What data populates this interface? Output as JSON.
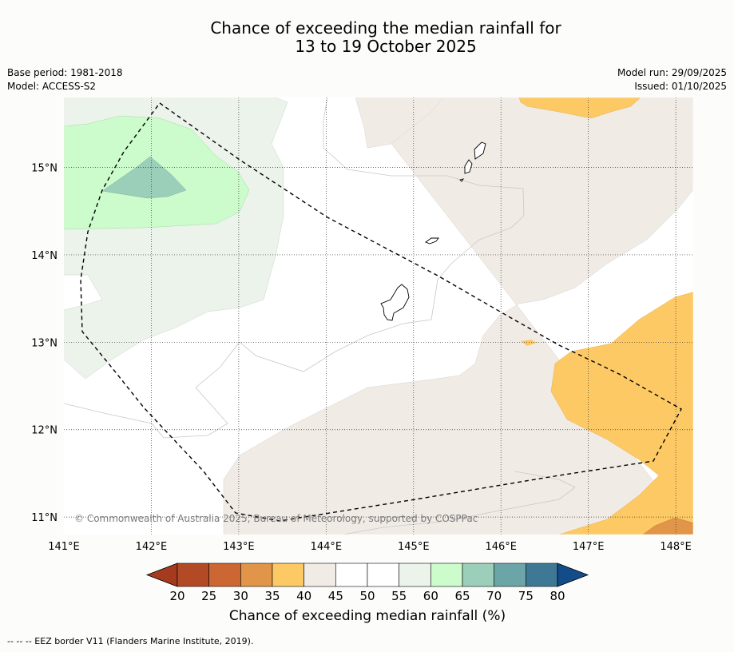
{
  "title": {
    "line1": "Chance of exceeding the median rainfall for",
    "line2": "13 to 19 October 2025"
  },
  "meta": {
    "base_period": "Base period: 1981-2018",
    "model": "Model: ACCESS-S2",
    "model_run": "Model run: 29/09/2025",
    "issued": "Issued: 01/10/2025"
  },
  "map": {
    "lon_range": [
      141.0,
      148.2
    ],
    "lat_range": [
      10.8,
      15.8
    ],
    "lon_ticks": [
      "141°E",
      "142°E",
      "143°E",
      "144°E",
      "145°E",
      "146°E",
      "147°E",
      "148°E"
    ],
    "lat_ticks": [
      "15°N",
      "14°N",
      "13°N",
      "12°N",
      "11°N"
    ],
    "copyright": "© Commonwealth of Australia 2025, Bureau of Meteorology, supported by COSPPac"
  },
  "colorbar": {
    "tick_labels": [
      "20",
      "25",
      "30",
      "35",
      "40",
      "45",
      "50",
      "55",
      "60",
      "65",
      "70",
      "75",
      "80"
    ],
    "colors": [
      "#b24a26",
      "#cc6633",
      "#e09548",
      "#fdc964",
      "#f1ebe6",
      "#ffffff",
      "#ffffff",
      "#ebf3ea",
      "#ccfccc",
      "#9ccfb9",
      "#6ba5a8",
      "#3f7895"
    ],
    "under_color": "#a43a1e",
    "over_color": "#124d8a",
    "title": "Chance of exceeding median rainfall (%)"
  },
  "footer": "--  --  -- EEZ border V11 (Flanders Marine Institute, 2019)."
}
